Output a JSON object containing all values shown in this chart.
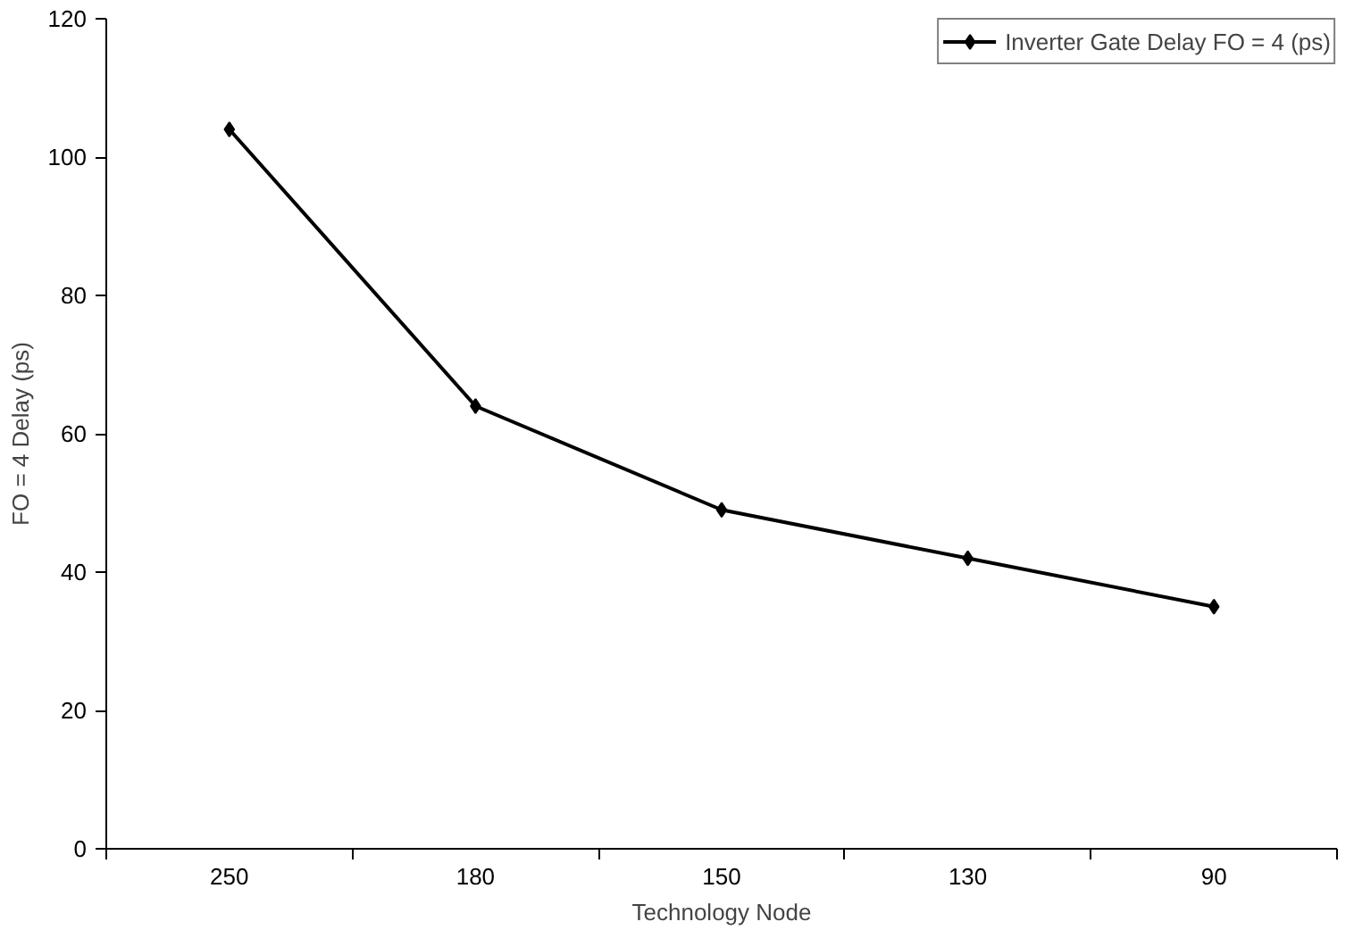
{
  "chart_data": {
    "type": "line",
    "xlabel": "Technology Node",
    "ylabel": "FO = 4 Delay (ps)",
    "categories": [
      "250",
      "180",
      "150",
      "130",
      "90"
    ],
    "series": [
      {
        "name": "Inverter Gate Delay FO = 4 (ps)",
        "color": "#000000",
        "values": [
          104,
          64,
          49,
          42,
          35
        ]
      }
    ],
    "ylim": [
      0,
      120
    ],
    "yticks": [
      0,
      20,
      40,
      60,
      80,
      100,
      120
    ],
    "grid": false,
    "legend": "top right",
    "marker": "diamond",
    "line_style": "solid"
  }
}
